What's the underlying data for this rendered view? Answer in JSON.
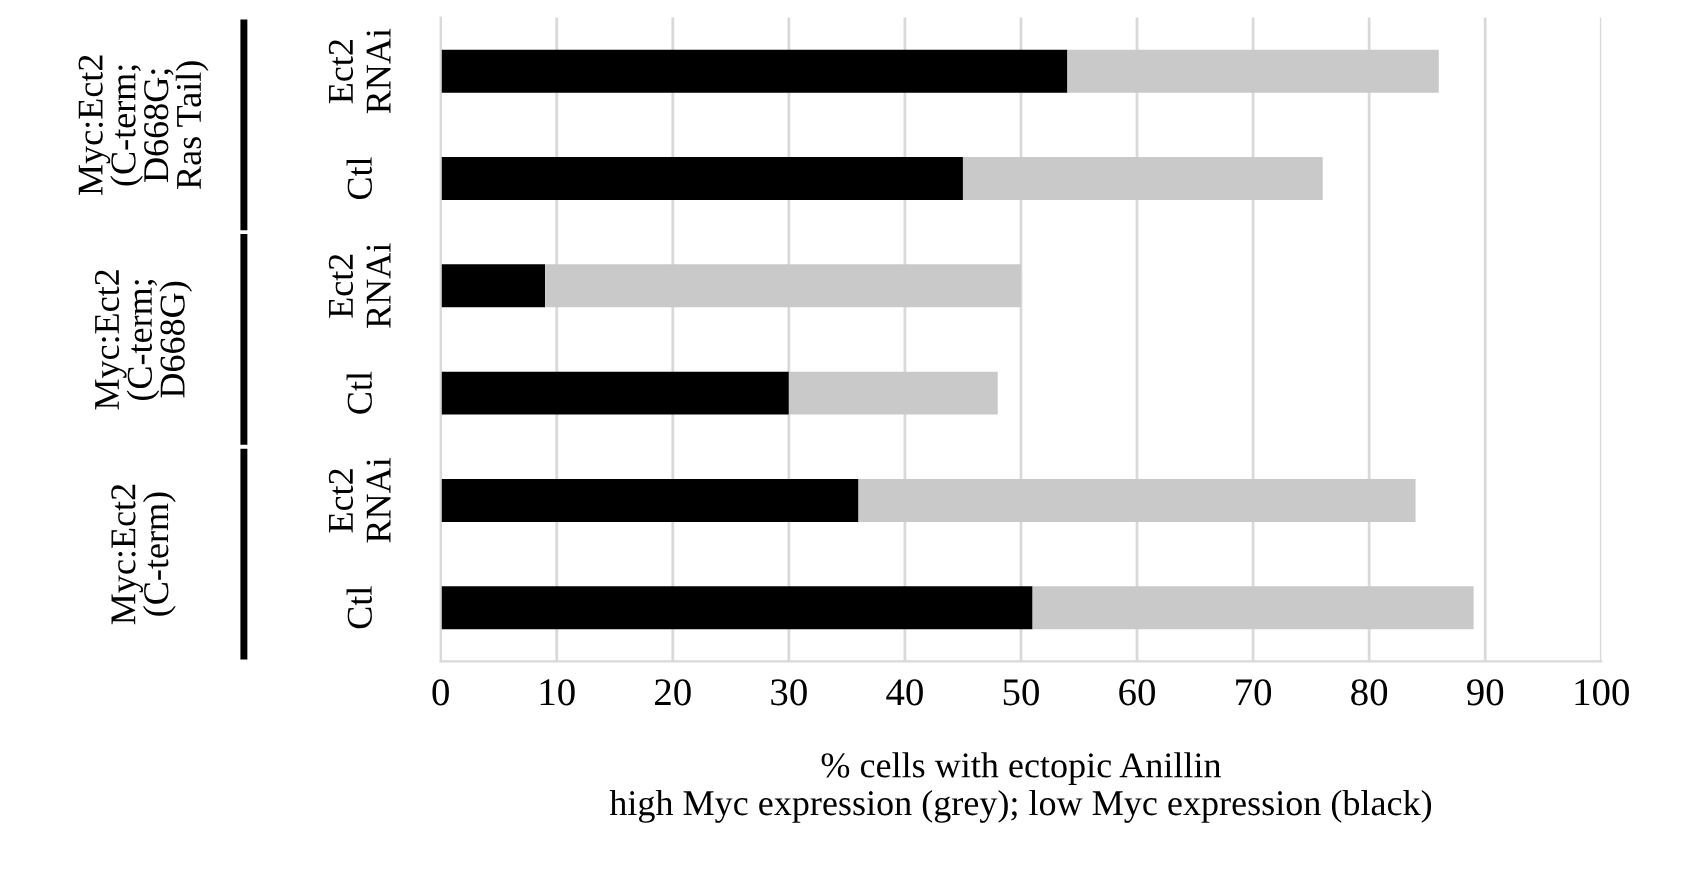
{
  "chart_data": {
    "type": "bar",
    "orientation": "horizontal",
    "stacked": true,
    "categories": [
      "Ect2 RNAi",
      "Ctl",
      "Ect2 RNAi",
      "Ctl",
      "Ect2 RNAi",
      "Ctl"
    ],
    "series": [
      {
        "color": "#000000",
        "values": [
          54,
          45,
          9,
          30,
          36,
          51
        ]
      },
      {
        "color": "#c9c9c9",
        "values": [
          32,
          31,
          41,
          18,
          48,
          38
        ]
      }
    ],
    "xlim": [
      0,
      100
    ],
    "xticks": [
      0,
      10,
      20,
      30,
      40,
      50,
      60,
      70,
      80,
      90,
      100
    ],
    "xlabel": "% cells with ectopic Anillin\nhigh Myc expression (grey); low Myc expression (black)",
    "annotations": [
      "Myc:Ect2 (C-term; D668G; Ras Tail)",
      "Myc:Ect2 (C-term; D668G)",
      "Myc:Ect2 (C-term)"
    ],
    "grid": "x",
    "legend": false
  }
}
